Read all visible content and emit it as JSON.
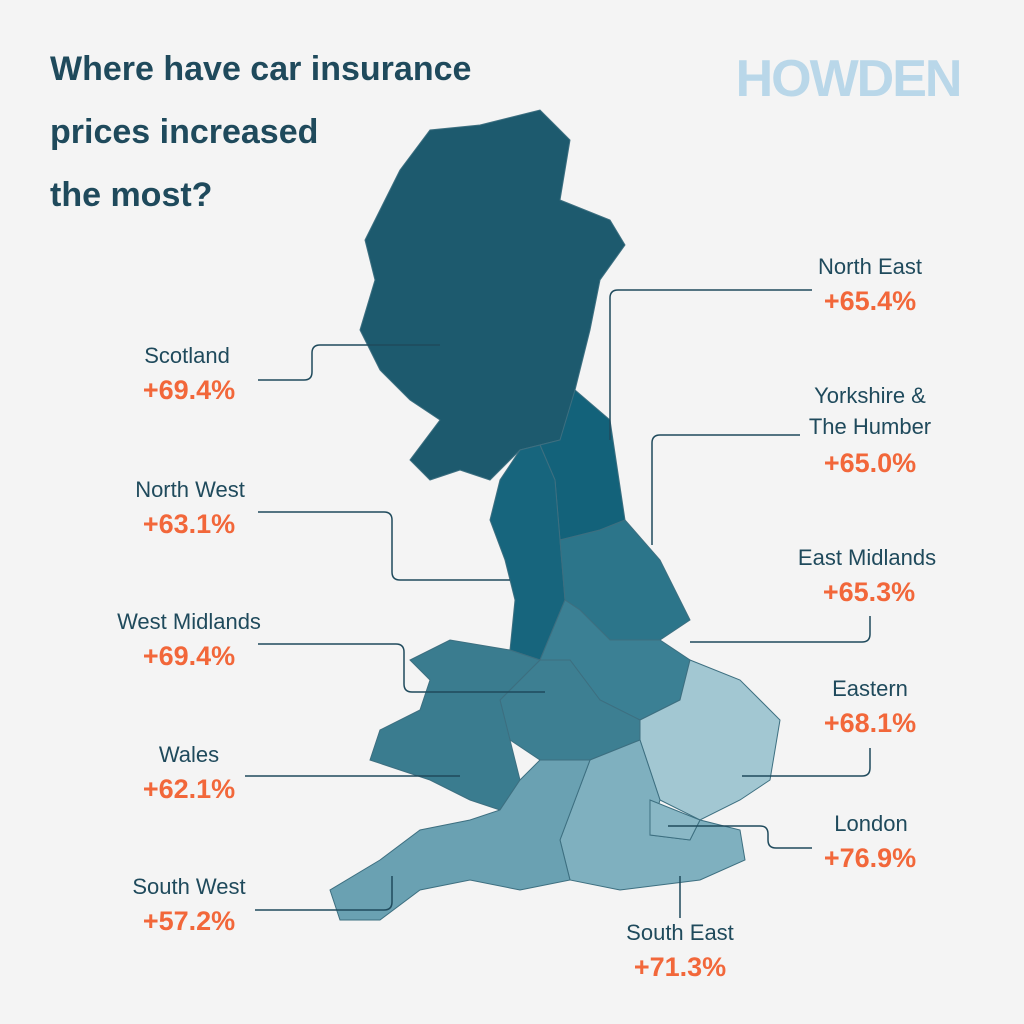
{
  "header": {
    "title_lines": [
      "Where have car insurance",
      "prices increased",
      "the most?"
    ],
    "logo": "HOWDEN"
  },
  "regions": [
    {
      "name": "Scotland",
      "value": "+69.4%"
    },
    {
      "name": "North West",
      "value": "+63.1%"
    },
    {
      "name": "West Midlands",
      "value": "+69.4%"
    },
    {
      "name": "Wales",
      "value": "+62.1%"
    },
    {
      "name": "South West",
      "value": "+57.2%"
    },
    {
      "name": "North East",
      "value": "+65.4%"
    },
    {
      "name_lines": [
        "Yorkshire &",
        "The Humber"
      ],
      "value": "+65.0%"
    },
    {
      "name": "East Midlands",
      "value": "+65.3%"
    },
    {
      "name": "Eastern",
      "value": "+68.1%"
    },
    {
      "name": "London",
      "value": "+76.9%"
    },
    {
      "name": "South East",
      "value": "+71.3%"
    }
  ]
}
